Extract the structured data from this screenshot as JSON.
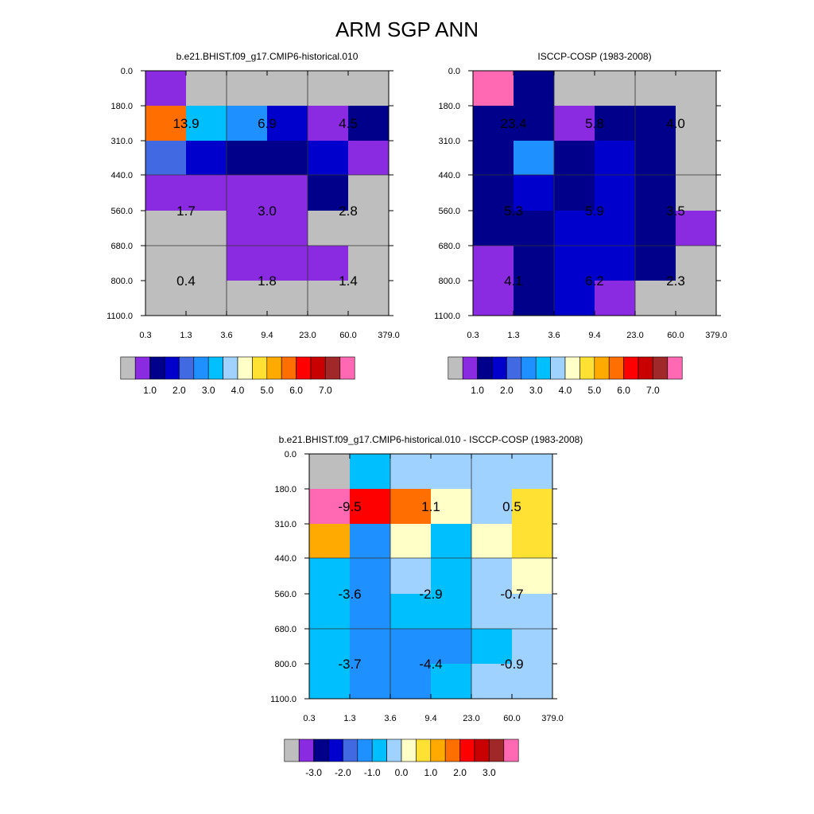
{
  "figure": {
    "title": "ARM SGP ANN"
  },
  "chart_data": [
    {
      "type": "heatmap",
      "title": "b.e21.BHIST.f09_g17.CMIP6-historical.010",
      "x_tick_labels": [
        "0.3",
        "1.3",
        "3.6",
        "9.4",
        "23.0",
        "60.0",
        "379.0"
      ],
      "y_tick_labels": [
        "0.0",
        "180.0",
        "310.0",
        "440.0",
        "560.0",
        "680.0",
        "800.0",
        "1100.0"
      ],
      "cell_color_index": [
        [
          1,
          0,
          0,
          0,
          0,
          0
        ],
        [
          11,
          6,
          5,
          3,
          1,
          2
        ],
        [
          4,
          3,
          2,
          2,
          3,
          1
        ],
        [
          1,
          1,
          1,
          1,
          2,
          0
        ],
        [
          0,
          0,
          1,
          1,
          0,
          0
        ],
        [
          0,
          0,
          1,
          1,
          1,
          0
        ],
        [
          0,
          0,
          0,
          0,
          0,
          0
        ]
      ],
      "block_labels": [
        [
          "13.9",
          "6.9",
          "4.5"
        ],
        [
          "1.7",
          "3.0",
          "2.8"
        ],
        [
          "0.4",
          "1.8",
          "1.4"
        ]
      ],
      "colorbar": {
        "colors": [
          "#bebebe",
          "#8a2be2",
          "#00008b",
          "#0000cd",
          "#4169e1",
          "#1e90ff",
          "#00bfff",
          "#a0d2ff",
          "#ffffc8",
          "#ffe133",
          "#ffaa00",
          "#ff6e00",
          "#ff0000",
          "#c80000",
          "#a02828",
          "#ff69b4"
        ],
        "labels": [
          "1.0",
          "2.0",
          "3.0",
          "4.0",
          "5.0",
          "6.0",
          "7.0"
        ]
      }
    },
    {
      "type": "heatmap",
      "title": "ISCCP-COSP (1983-2008)",
      "x_tick_labels": [
        "0.3",
        "1.3",
        "3.6",
        "9.4",
        "23.0",
        "60.0",
        "379.0"
      ],
      "y_tick_labels": [
        "0.0",
        "180.0",
        "310.0",
        "440.0",
        "560.0",
        "680.0",
        "800.0",
        "1100.0"
      ],
      "cell_color_index": [
        [
          15,
          2,
          0,
          0,
          0,
          0
        ],
        [
          2,
          2,
          1,
          2,
          2,
          0
        ],
        [
          2,
          5,
          2,
          3,
          2,
          0
        ],
        [
          2,
          3,
          2,
          3,
          2,
          0
        ],
        [
          2,
          2,
          3,
          3,
          2,
          1
        ],
        [
          1,
          2,
          3,
          3,
          2,
          0
        ],
        [
          1,
          2,
          3,
          1,
          0,
          0
        ]
      ],
      "block_labels": [
        [
          "23.4",
          "5.8",
          "4.0"
        ],
        [
          "5.3",
          "5.9",
          "3.5"
        ],
        [
          "4.1",
          "6.2",
          "2.3"
        ]
      ],
      "colorbar": {
        "colors": [
          "#bebebe",
          "#8a2be2",
          "#00008b",
          "#0000cd",
          "#4169e1",
          "#1e90ff",
          "#00bfff",
          "#a0d2ff",
          "#ffffc8",
          "#ffe133",
          "#ffaa00",
          "#ff6e00",
          "#ff0000",
          "#c80000",
          "#a02828",
          "#ff69b4"
        ],
        "labels": [
          "1.0",
          "2.0",
          "3.0",
          "4.0",
          "5.0",
          "6.0",
          "7.0"
        ]
      }
    },
    {
      "type": "heatmap",
      "title": "b.e21.BHIST.f09_g17.CMIP6-historical.010 - ISCCP-COSP (1983-2008)",
      "x_tick_labels": [
        "0.3",
        "1.3",
        "3.6",
        "9.4",
        "23.0",
        "60.0",
        "379.0"
      ],
      "y_tick_labels": [
        "0.0",
        "180.0",
        "310.0",
        "440.0",
        "560.0",
        "680.0",
        "800.0",
        "1100.0"
      ],
      "cell_color_index": [
        [
          0,
          6,
          7,
          7,
          7,
          7
        ],
        [
          15,
          12,
          11,
          8,
          7,
          9
        ],
        [
          10,
          5,
          8,
          6,
          8,
          9
        ],
        [
          6,
          5,
          7,
          6,
          7,
          8
        ],
        [
          6,
          5,
          6,
          6,
          7,
          7
        ],
        [
          6,
          5,
          5,
          5,
          6,
          7
        ],
        [
          6,
          5,
          5,
          6,
          7,
          7
        ]
      ],
      "block_labels": [
        [
          "-9.5",
          "1.1",
          "0.5"
        ],
        [
          "-3.6",
          "-2.9",
          "-0.7"
        ],
        [
          "-3.7",
          "-4.4",
          "-0.9"
        ]
      ],
      "colorbar": {
        "colors": [
          "#bebebe",
          "#8a2be2",
          "#00008b",
          "#0000cd",
          "#4169e1",
          "#1e90ff",
          "#00bfff",
          "#a0d2ff",
          "#ffffc8",
          "#ffe133",
          "#ffaa00",
          "#ff6e00",
          "#ff0000",
          "#c80000",
          "#a02828",
          "#ff69b4"
        ],
        "labels": [
          "-3.0",
          "-2.0",
          "-1.0",
          "0.0",
          "1.0",
          "2.0",
          "3.0"
        ]
      }
    }
  ]
}
